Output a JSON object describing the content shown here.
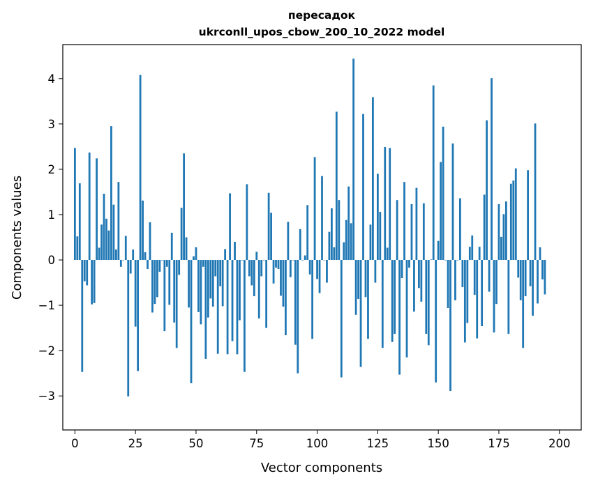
{
  "chart_data": {
    "type": "bar",
    "title": "пересадок",
    "subtitle": "ukrconll_upos_cbow_200_10_2022 model",
    "xlabel": "Vector components",
    "ylabel": "Components values",
    "xlim": [
      -5,
      209
    ],
    "ylim": [
      -3.75,
      4.75
    ],
    "xticks": [
      0,
      25,
      50,
      75,
      100,
      125,
      150,
      175,
      200
    ],
    "yticks": [
      -3,
      -2,
      -1,
      0,
      1,
      2,
      3,
      4
    ],
    "bar_color": "#1f77b4",
    "grid": false,
    "values": [
      2.47,
      0.52,
      1.69,
      -2.47,
      -0.47,
      -0.56,
      2.37,
      -0.98,
      -0.95,
      2.24,
      0.27,
      0.78,
      1.46,
      0.91,
      0.65,
      2.95,
      1.22,
      0.23,
      1.72,
      -0.15,
      0.0,
      0.53,
      -3.01,
      -0.3,
      0.23,
      -1.47,
      -2.45,
      4.08,
      1.31,
      0.17,
      -0.2,
      0.83,
      -1.16,
      -0.97,
      -0.82,
      -0.26,
      0.0,
      -1.57,
      -0.15,
      -0.99,
      0.6,
      -1.38,
      -1.94,
      -0.33,
      1.15,
      2.35,
      0.5,
      -1.05,
      -2.72,
      0.08,
      0.28,
      -1.15,
      -1.42,
      -0.15,
      -2.18,
      -1.27,
      -0.85,
      -1.03,
      -0.36,
      -2.07,
      -0.58,
      -1.02,
      0.24,
      -2.08,
      1.47,
      -1.79,
      0.4,
      -2.08,
      -1.33,
      0.0,
      -2.47,
      1.67,
      -0.36,
      -0.56,
      -0.8,
      0.18,
      -1.29,
      -0.36,
      0.0,
      -1.5,
      1.48,
      1.04,
      -0.52,
      -0.17,
      -0.2,
      -0.79,
      -1.03,
      -1.66,
      0.84,
      -0.38,
      0.0,
      -1.87,
      -2.5,
      0.68,
      0.0,
      0.1,
      1.21,
      -0.32,
      -1.74,
      2.27,
      -0.42,
      -0.73,
      1.85,
      0.0,
      -0.5,
      0.62,
      1.14,
      0.28,
      3.27,
      1.32,
      -2.59,
      0.39,
      0.88,
      1.62,
      0.81,
      4.44,
      -1.21,
      -0.86,
      -2.36,
      3.22,
      -0.82,
      -1.74,
      0.78,
      3.59,
      -0.5,
      1.9,
      1.06,
      -1.94,
      2.49,
      0.27,
      2.47,
      -1.81,
      -1.63,
      1.32,
      -2.53,
      -0.4,
      1.72,
      -2.15,
      -0.17,
      1.23,
      -1.14,
      1.59,
      -0.62,
      -0.92,
      1.25,
      -1.63,
      -1.88,
      0.01,
      3.85,
      -2.7,
      0.42,
      2.16,
      2.94,
      0.0,
      -1.06,
      -2.89,
      2.57,
      -0.89,
      0.0,
      1.36,
      -0.6,
      -1.82,
      -1.39,
      0.29,
      0.54,
      -0.77,
      -1.73,
      0.29,
      -1.46,
      1.44,
      3.08,
      -0.7,
      4.01,
      -1.6,
      -0.97,
      1.23,
      0.51,
      1.01,
      1.29,
      -1.63,
      1.68,
      1.75,
      2.02,
      -0.39,
      -0.89,
      -1.94,
      -0.8,
      1.98,
      -0.58,
      -1.23,
      3.01,
      -0.96,
      0.28,
      -0.43,
      -0.76
    ]
  }
}
